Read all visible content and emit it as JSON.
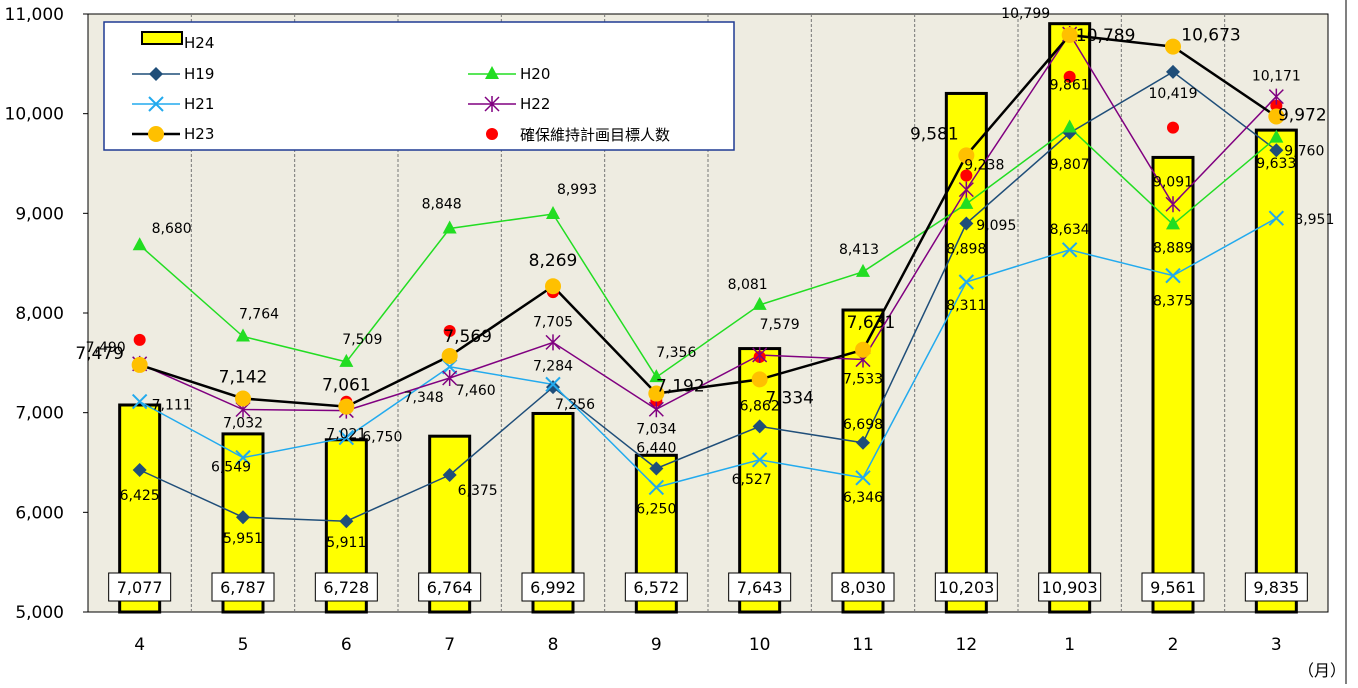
{
  "chart_data": {
    "type": "bar",
    "categories": [
      "4",
      "5",
      "6",
      "7",
      "8",
      "9",
      "10",
      "11",
      "12",
      "1",
      "2",
      "3"
    ],
    "x_unit": "（月）",
    "ylim": [
      5000,
      11000
    ],
    "yticks": [
      5000,
      6000,
      7000,
      8000,
      9000,
      10000,
      11000
    ],
    "ytick_labels": [
      "5,000",
      "6,000",
      "7,000",
      "8,000",
      "9,000",
      "10,000",
      "11,000"
    ],
    "grid": "vertical-dashed",
    "legend_position": "top-left",
    "bar_series": {
      "name": "H24",
      "values": [
        7077,
        6787,
        6728,
        6764,
        6992,
        6572,
        7643,
        8030,
        10203,
        10903,
        9561,
        9835
      ],
      "labels": [
        "7,077",
        "6,787",
        "6,728",
        "6,764",
        "6,992",
        "6,572",
        "7,643",
        "8,030",
        "10,203",
        "10,903",
        "9,561",
        "9,835"
      ],
      "color": "#FFFF00"
    },
    "line_series": [
      {
        "name": "H19",
        "color": "#1F4E79",
        "marker": "diamond",
        "values": [
          6425,
          5951,
          5911,
          6375,
          7256,
          6440,
          6862,
          6698,
          8898,
          9807,
          10419,
          9633
        ],
        "labels": [
          "6,425",
          "5,951",
          "5,911",
          "6,375",
          "7,256",
          "6,440",
          "6,862",
          "6,698",
          "8,898",
          "9,807",
          "10,419",
          "9,633"
        ]
      },
      {
        "name": "H20",
        "color": "#22DD22",
        "marker": "triangle",
        "values": [
          8680,
          7764,
          7509,
          8848,
          8993,
          7356,
          8081,
          8413,
          9095,
          9861,
          8889,
          9760
        ],
        "labels": [
          "8,680",
          "7,764",
          "7,509",
          "8,848",
          "8,993",
          "7,356",
          "8,081",
          "8,413",
          "9,095",
          "9,861",
          "8,889",
          "9,760"
        ]
      },
      {
        "name": "H21",
        "color": "#22AAEE",
        "marker": "x",
        "values": [
          7111,
          6549,
          6750,
          7460,
          7284,
          6250,
          6527,
          6346,
          8311,
          8634,
          8375,
          8951
        ],
        "labels": [
          "7,111",
          "6,549",
          "6,750",
          "7,460",
          "7,284",
          "6,250",
          "6,527",
          "6,346",
          "8,311",
          "8,634",
          "8,375",
          "8,951"
        ]
      },
      {
        "name": "H22",
        "color": "#800080",
        "marker": "star",
        "values": [
          7490,
          7032,
          7021,
          7348,
          7705,
          7034,
          7579,
          7533,
          9238,
          10799,
          9091,
          10171
        ],
        "labels": [
          "7,490",
          "7,032",
          "7,021",
          "7,348",
          "7,705",
          "7,034",
          "7,579",
          "7,533",
          "9,238",
          "10,799",
          "9,091",
          "10,171"
        ]
      },
      {
        "name": "H23",
        "color": "#000000",
        "marker": "circle-orange",
        "values": [
          7479,
          7142,
          7061,
          7569,
          8269,
          7192,
          7334,
          7631,
          9581,
          10789,
          10673,
          9972
        ],
        "labels": [
          "7,479",
          "7,142",
          "7,061",
          "7,569",
          "8,269",
          "7,192",
          "7,334",
          "7,631",
          "9,581",
          "10,789",
          "10,673",
          "9,972"
        ]
      }
    ],
    "target_series": {
      "name": "確保維持計画目標人数",
      "color": "#FF0000",
      "values": [
        7730,
        7150,
        7110,
        7820,
        8210,
        7120,
        7560,
        7620,
        9380,
        10370,
        9860,
        10080
      ]
    }
  }
}
